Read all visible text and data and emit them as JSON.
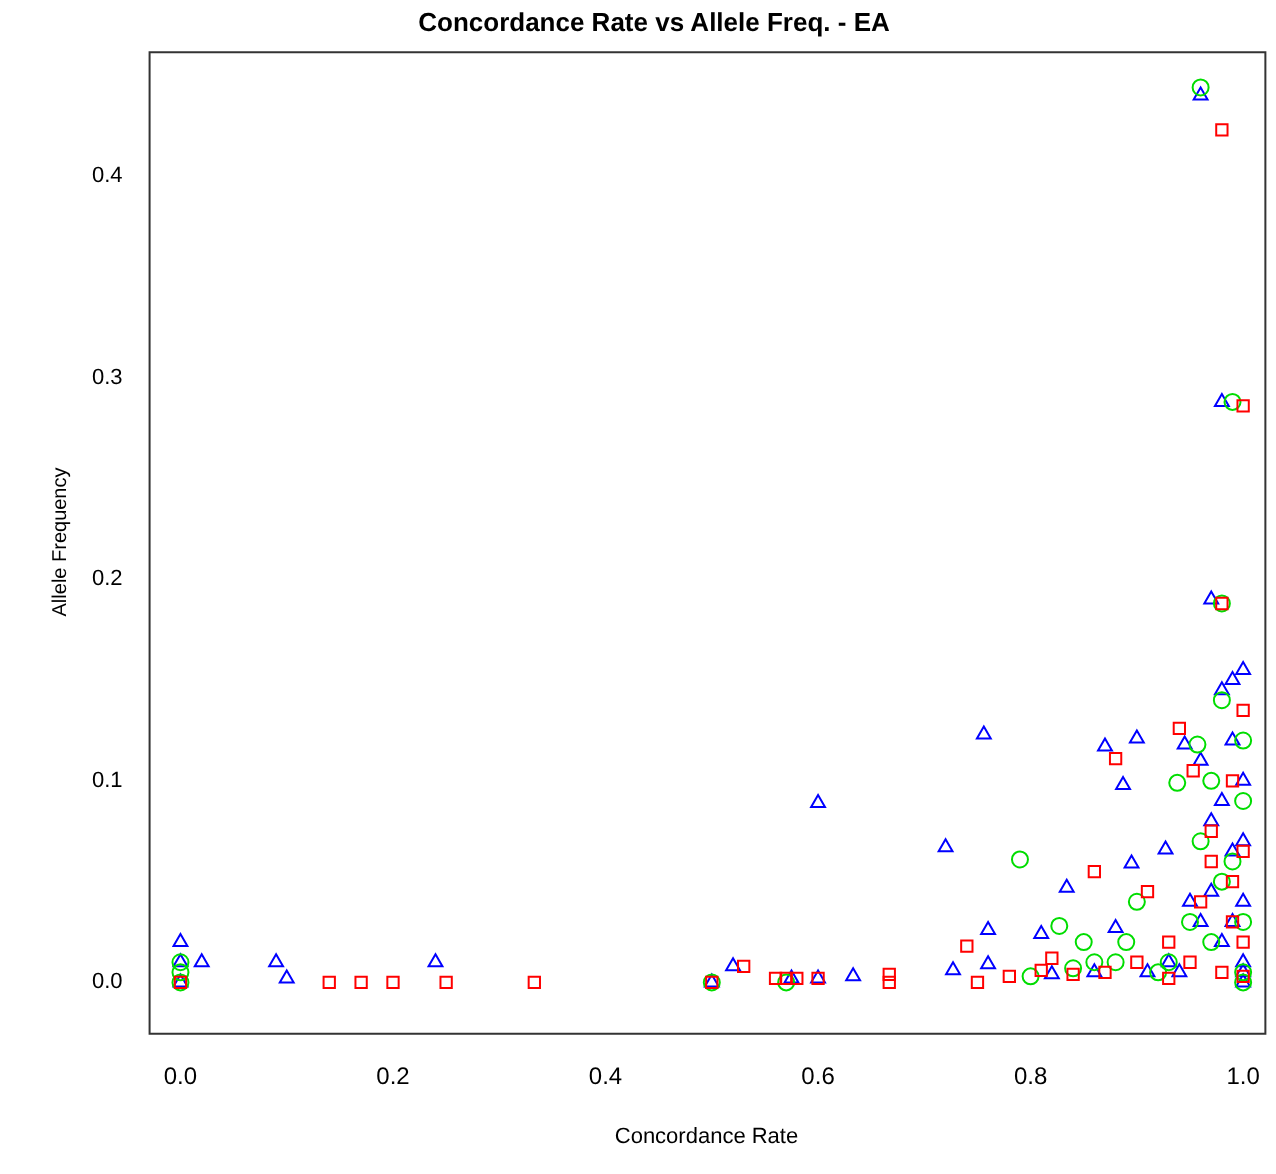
{
  "chart_data": {
    "type": "scatter",
    "title": "Concordance Rate vs Allele Freq. - EA",
    "xlabel": "Concordance Rate",
    "ylabel": "Allele Frequency",
    "xlim": [
      -0.03,
      1.02
    ],
    "ylim": [
      -0.025,
      0.462
    ],
    "xticks": [
      {
        "value": 0,
        "label": "0.0"
      },
      {
        "value": 0.2,
        "label": "0.2"
      },
      {
        "value": 0.4,
        "label": "0.4"
      },
      {
        "value": 0.6,
        "label": "0.6"
      },
      {
        "value": 0.8,
        "label": "0.8"
      },
      {
        "value": 1,
        "label": "1.0"
      }
    ],
    "yticks": [
      {
        "value": 0,
        "label": "0.0"
      },
      {
        "value": 0.1,
        "label": "0.1"
      },
      {
        "value": 0.2,
        "label": "0.2"
      },
      {
        "value": 0.3,
        "label": "0.3"
      },
      {
        "value": 0.4,
        "label": "0.4"
      }
    ],
    "grid": false,
    "legend": false,
    "series": [
      {
        "color": "#ff0000",
        "marker": "square",
        "x": [
          0,
          0.14,
          0.17,
          0.2,
          0.25,
          0.333,
          0.5,
          0.53,
          0.56,
          0.57,
          0.58,
          0.6,
          0.667,
          0.667,
          0.75,
          0.74,
          0.78,
          0.81,
          0.86,
          0.88,
          0.94,
          0.953,
          0.98,
          1.0,
          0.98,
          1.0,
          0.99,
          0.97,
          0.99,
          1.0,
          0.96,
          0.93,
          0.9,
          0.87,
          0.84,
          0.95,
          0.98,
          1.0,
          0.91,
          0.82,
          0.99,
          0.97,
          0.93,
          1.0
        ],
        "values": [
          0,
          0,
          0,
          0,
          0,
          0,
          0,
          0.008,
          0.002,
          0.002,
          0.002,
          0.002,
          0,
          0.004,
          0,
          0.018,
          0.003,
          0.006,
          0.055,
          0.111,
          0.126,
          0.105,
          0.423,
          0.286,
          0.188,
          0.135,
          0.1,
          0.075,
          0.05,
          0.065,
          0.04,
          0.02,
          0.01,
          0.005,
          0.004,
          0.01,
          0.005,
          0.02,
          0.045,
          0.012,
          0.03,
          0.06,
          0.002,
          0.003
        ]
      },
      {
        "color": "#00dd00",
        "marker": "circle",
        "x": [
          0,
          0,
          0,
          0.5,
          0.57,
          0.79,
          0.827,
          0.84,
          0.85,
          0.8,
          0.9,
          0.938,
          0.957,
          0.96,
          0.99,
          0.98,
          1.0,
          0.98,
          0.96,
          0.98,
          1.0,
          1.0,
          0.97,
          0.93,
          0.92,
          0.88,
          1.0,
          1.0,
          0.99,
          0.97,
          0.95,
          0.86,
          0.89
        ],
        "values": [
          0.01,
          0.005,
          0,
          0,
          0,
          0.061,
          0.028,
          0.007,
          0.02,
          0.003,
          0.04,
          0.099,
          0.118,
          0.444,
          0.288,
          0.188,
          0.09,
          0.05,
          0.07,
          0.14,
          0.12,
          0.03,
          0.02,
          0.01,
          0.005,
          0.01,
          0.005,
          0,
          0.06,
          0.1,
          0.03,
          0.01,
          0.02
        ]
      },
      {
        "color": "#0000ff",
        "marker": "triangle",
        "x": [
          0,
          0,
          0,
          0.02,
          0.09,
          0.1,
          0.24,
          0.5,
          0.52,
          0.575,
          0.6,
          0.633,
          0.6,
          0.72,
          0.727,
          0.756,
          0.76,
          0.76,
          0.81,
          0.82,
          0.834,
          0.87,
          0.88,
          0.887,
          0.895,
          0.9,
          0.927,
          0.93,
          0.945,
          0.96,
          0.97,
          0.98,
          0.98,
          0.99,
          1.0,
          0.99,
          1.0,
          0.98,
          0.99,
          1.0,
          0.97,
          0.95,
          0.98,
          1.0,
          1.0,
          1.0,
          0.96,
          0.94,
          0.91,
          0.86,
          0.97,
          0.99,
          1.0,
          0.96
        ],
        "values": [
          0.02,
          0.01,
          0,
          0.01,
          0.01,
          0.002,
          0.01,
          0,
          0.008,
          0.002,
          0.002,
          0.003,
          0.089,
          0.067,
          0.006,
          0.123,
          0.026,
          0.009,
          0.024,
          0.004,
          0.047,
          0.117,
          0.027,
          0.098,
          0.059,
          0.121,
          0.066,
          0.01,
          0.118,
          0.44,
          0.19,
          0.288,
          0.145,
          0.15,
          0.155,
          0.12,
          0.1,
          0.09,
          0.065,
          0.04,
          0.045,
          0.04,
          0.02,
          0.01,
          0.005,
          0,
          0.03,
          0.005,
          0.005,
          0.005,
          0.08,
          0.03,
          0.07,
          0.11
        ]
      }
    ]
  }
}
